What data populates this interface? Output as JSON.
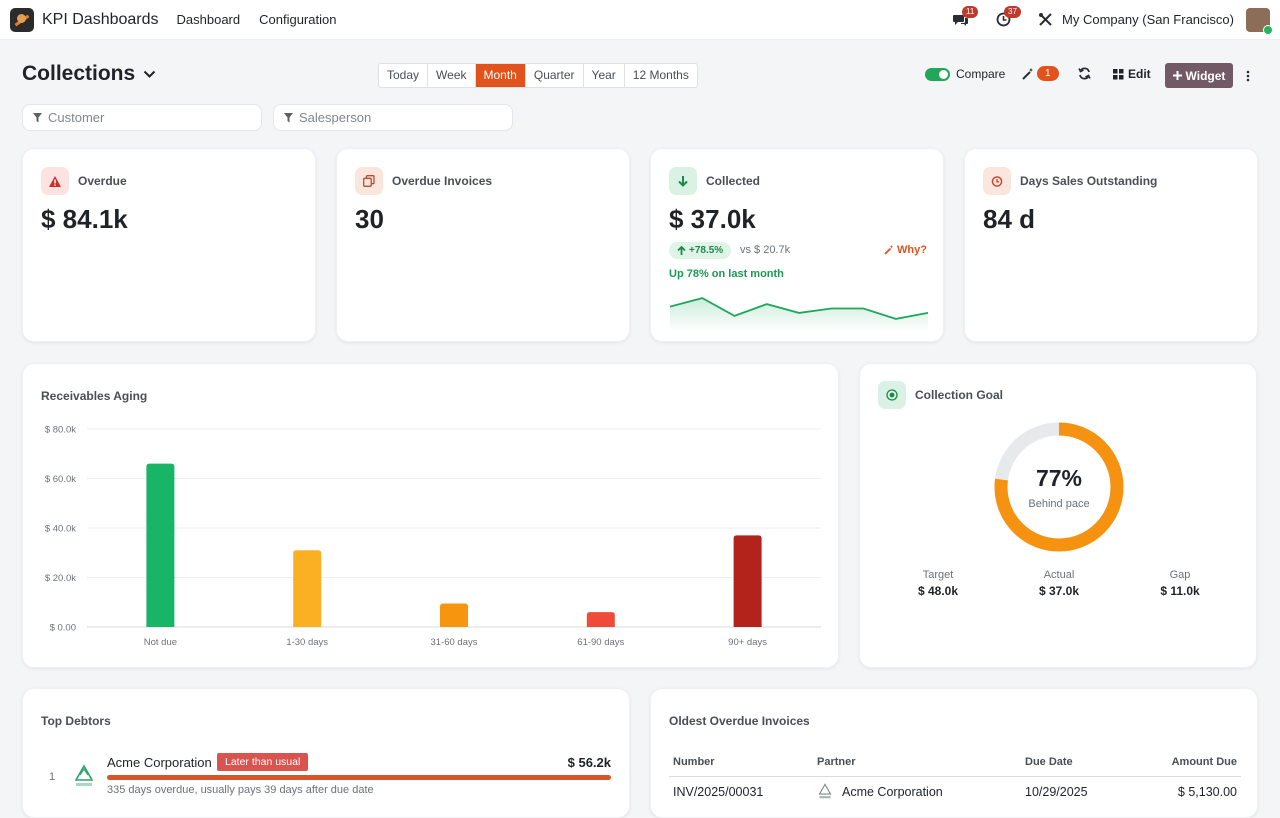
{
  "navbar": {
    "app_name": "KPI Dashboards",
    "menu": [
      "Dashboard",
      "Configuration"
    ],
    "messages_count": "11",
    "activities_count": "37",
    "company": "My Company (San Francisco)"
  },
  "controls": {
    "title": "Collections",
    "ranges": [
      "Today",
      "Week",
      "Month",
      "Quarter",
      "Year",
      "12 Months"
    ],
    "active_range": "Month",
    "compare_label": "Compare",
    "compare_on": true,
    "insights_count": "1",
    "edit_label": "Edit",
    "widget_label": "Widget"
  },
  "filters": {
    "customer_placeholder": "Customer",
    "salesperson_placeholder": "Salesperson"
  },
  "kpis": {
    "overdue": {
      "title": "Overdue",
      "value": "$ 84.1k",
      "color": "#d9534f"
    },
    "overdue_invoices": {
      "title": "Overdue Invoices",
      "value": "30",
      "color": "#d56a4a"
    },
    "collected": {
      "title": "Collected",
      "value": "$ 37.0k",
      "color": "#1a9a52",
      "trend": "+78.5%",
      "comparison": "vs $ 20.7k",
      "why": "Why?",
      "note": "Up 78% on last month",
      "spark": [
        0.55,
        0.78,
        0.3,
        0.62,
        0.38,
        0.5,
        0.5,
        0.22,
        0.38
      ]
    },
    "dso": {
      "title": "Days Sales Outstanding",
      "value": "84 d",
      "color": "#e2521c"
    }
  },
  "aging": {
    "title": "Receivables Aging"
  },
  "chart_data": {
    "type": "bar",
    "title": "Receivables Aging",
    "categories": [
      "Not due",
      "1-30 days",
      "31-60 days",
      "61-90 days",
      "90+ days"
    ],
    "values": [
      66000,
      31000,
      9500,
      6000,
      37000
    ],
    "colors": [
      "#19b566",
      "#fbb024",
      "#f7960e",
      "#ee4b39",
      "#b3231b"
    ],
    "ylim": [
      0,
      80000
    ],
    "yticks": [
      "$ 0.00",
      "$ 20.0k",
      "$ 40.0k",
      "$ 60.0k",
      "$ 80.0k"
    ],
    "grid": true
  },
  "goal": {
    "title": "Collection Goal",
    "percent_label": "77%",
    "percent": 0.77,
    "status": "Behind pace",
    "ring_color": "#f5920f",
    "stats": [
      {
        "label": "Target",
        "value": "$ 48.0k"
      },
      {
        "label": "Actual",
        "value": "$ 37.0k"
      },
      {
        "label": "Gap",
        "value": "$ 11.0k"
      }
    ]
  },
  "debtors": {
    "title": "Top Debtors",
    "items": [
      {
        "rank": "1",
        "name": "Acme Corporation",
        "badge": "Later than usual",
        "amount": "$ 56.2k",
        "note": "335 days overdue, usually pays 39 days after due date",
        "share": 1.0
      }
    ]
  },
  "invoices": {
    "title": "Oldest Overdue Invoices",
    "columns": [
      "Number",
      "Partner",
      "Due Date",
      "Amount Due"
    ],
    "rows": [
      {
        "number": "INV/2025/00031",
        "partner": "Acme Corporation",
        "due": "10/29/2025",
        "amount": "$ 5,130.00"
      }
    ]
  }
}
